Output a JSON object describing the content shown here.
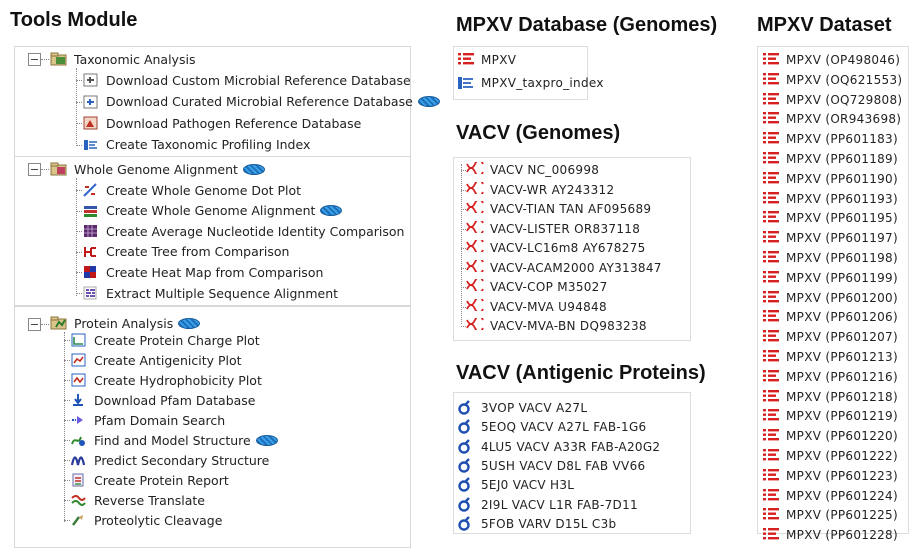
{
  "headings": {
    "tools": "Tools Module",
    "mpxv_db": "MPXV Database (Genomes)",
    "vacv_genomes": "VACV (Genomes)",
    "vacv_antigenic": "VACV (Antigenic Proteins)",
    "mpxv_dataset": "MPXV Dataset"
  },
  "tools": {
    "taxonomic": {
      "label": "Taxonomic Analysis",
      "items": [
        "Download Custom Microbial Reference Database",
        "Download Curated Microbial Reference Database",
        "Download Pathogen Reference Database",
        "Create Taxonomic Profiling Index"
      ]
    },
    "wga": {
      "label": "Whole Genome Alignment",
      "items": [
        "Create Whole Genome Dot Plot",
        "Create Whole Genome Alignment",
        "Create Average Nucleotide Identity Comparison",
        "Create Tree from Comparison",
        "Create Heat Map from Comparison",
        "Extract Multiple Sequence Alignment"
      ]
    },
    "protein": {
      "label": "Protein Analysis",
      "items": [
        "Create Protein Charge Plot",
        "Create Antigenicity Plot",
        "Create Hydrophobicity Plot",
        "Download Pfam Database",
        "Pfam Domain Search",
        "Find and Model Structure",
        "Predict Secondary Structure",
        "Create Protein Report",
        "Reverse Translate",
        "Proteolytic Cleavage"
      ]
    }
  },
  "mpxv_db": [
    "MPXV",
    "MPXV_taxpro_index"
  ],
  "vacv_genomes": [
    "VACV NC_006998",
    "VACV-WR AY243312",
    "VACV-TIAN TAN AF095689",
    "VACV-LISTER OR837118",
    "VACV-LC16m8 AY678275",
    "VACV-ACAM2000 AY313847",
    "VACV-COP M35027",
    "VACV-MVA U94848",
    "VACV-MVA-BN DQ983238"
  ],
  "vacv_antigenic": [
    "3VOP VACV A27L",
    "5EOQ VACV A27L FAB-1G6",
    "4LU5 VACV A33R FAB-A20G2",
    "5USH VACV D8L FAB VV66",
    "5EJ0 VACV H3L",
    "2I9L VACV L1R FAB-7D11",
    "5FOB VARV D15L C3b"
  ],
  "mpxv_dataset": [
    "MPXV (OP498046)",
    "MPXV (OQ621553)",
    "MPXV (OQ729808)",
    "MPXV (OR943698)",
    "MPXV (PP601183)",
    "MPXV (PP601189)",
    "MPXV (PP601190)",
    "MPXV (PP601193)",
    "MPXV (PP601195)",
    "MPXV (PP601197)",
    "MPXV (PP601198)",
    "MPXV (PP601199)",
    "MPXV (PP601200)",
    "MPXV (PP601206)",
    "MPXV (PP601207)",
    "MPXV (PP601213)",
    "MPXV (PP601216)",
    "MPXV (PP601218)",
    "MPXV (PP601219)",
    "MPXV (PP601220)",
    "MPXV (PP601222)",
    "MPXV (PP601223)",
    "MPXV (PP601224)",
    "MPXV (PP601225)",
    "MPXV (PP601228)"
  ],
  "colors": {
    "seq_red": "#d62020",
    "cloud_blue": "#2b86d6",
    "protein_blue": "#1f4fb0"
  },
  "icons": {
    "section_folder": "folder-with-gear-icon",
    "sequence_list": "sequence-list-icon",
    "genome_sequence": "dna-sequence-icon",
    "protein_structure": "protein-structure-icon",
    "cloud_badge": "cloud-icon"
  }
}
